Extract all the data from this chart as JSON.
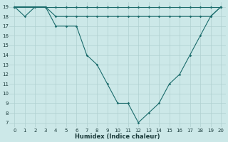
{
  "title": "",
  "xlabel": "Humidex (Indice chaleur)",
  "bg_color": "#cce8e8",
  "grid_color": "#b0d0d0",
  "line_color": "#1a6b6b",
  "xlim": [
    -0.5,
    20.5
  ],
  "ylim": [
    6.5,
    19.5
  ],
  "yticks": [
    7,
    8,
    9,
    10,
    11,
    12,
    13,
    14,
    15,
    16,
    17,
    18,
    19
  ],
  "xticks": [
    0,
    1,
    2,
    3,
    4,
    5,
    6,
    7,
    8,
    9,
    10,
    11,
    12,
    13,
    14,
    15,
    16,
    17,
    18,
    19,
    20
  ],
  "line1_x": [
    0,
    1,
    2,
    3,
    4,
    5,
    6,
    7,
    8,
    9,
    10,
    11,
    12,
    13,
    14,
    15,
    16,
    17,
    18,
    19,
    20
  ],
  "line1_y": [
    19,
    18,
    19,
    19,
    17,
    17,
    17,
    14,
    13,
    11,
    9,
    9,
    7,
    8,
    9,
    11,
    12,
    14,
    16,
    18,
    19
  ],
  "line2_x": [
    0,
    3,
    4,
    5,
    6,
    7,
    8,
    9,
    10,
    11,
    12,
    13,
    14,
    15,
    16,
    17,
    18,
    19,
    20
  ],
  "line2_y": [
    19,
    19,
    18,
    18,
    18,
    18,
    18,
    18,
    18,
    18,
    18,
    18,
    18,
    18,
    18,
    18,
    18,
    18,
    19
  ],
  "line3_x": [
    0,
    3,
    4,
    5,
    6,
    7,
    8,
    9,
    10,
    11,
    12,
    13,
    14,
    15,
    16,
    17,
    18,
    19,
    20
  ],
  "line3_y": [
    19,
    19,
    19,
    19,
    19,
    19,
    19,
    19,
    19,
    19,
    19,
    19,
    19,
    19,
    19,
    19,
    19,
    19,
    19
  ],
  "xlabel_fontsize": 6,
  "tick_fontsize": 5,
  "linewidth": 0.8,
  "markersize": 1.8
}
